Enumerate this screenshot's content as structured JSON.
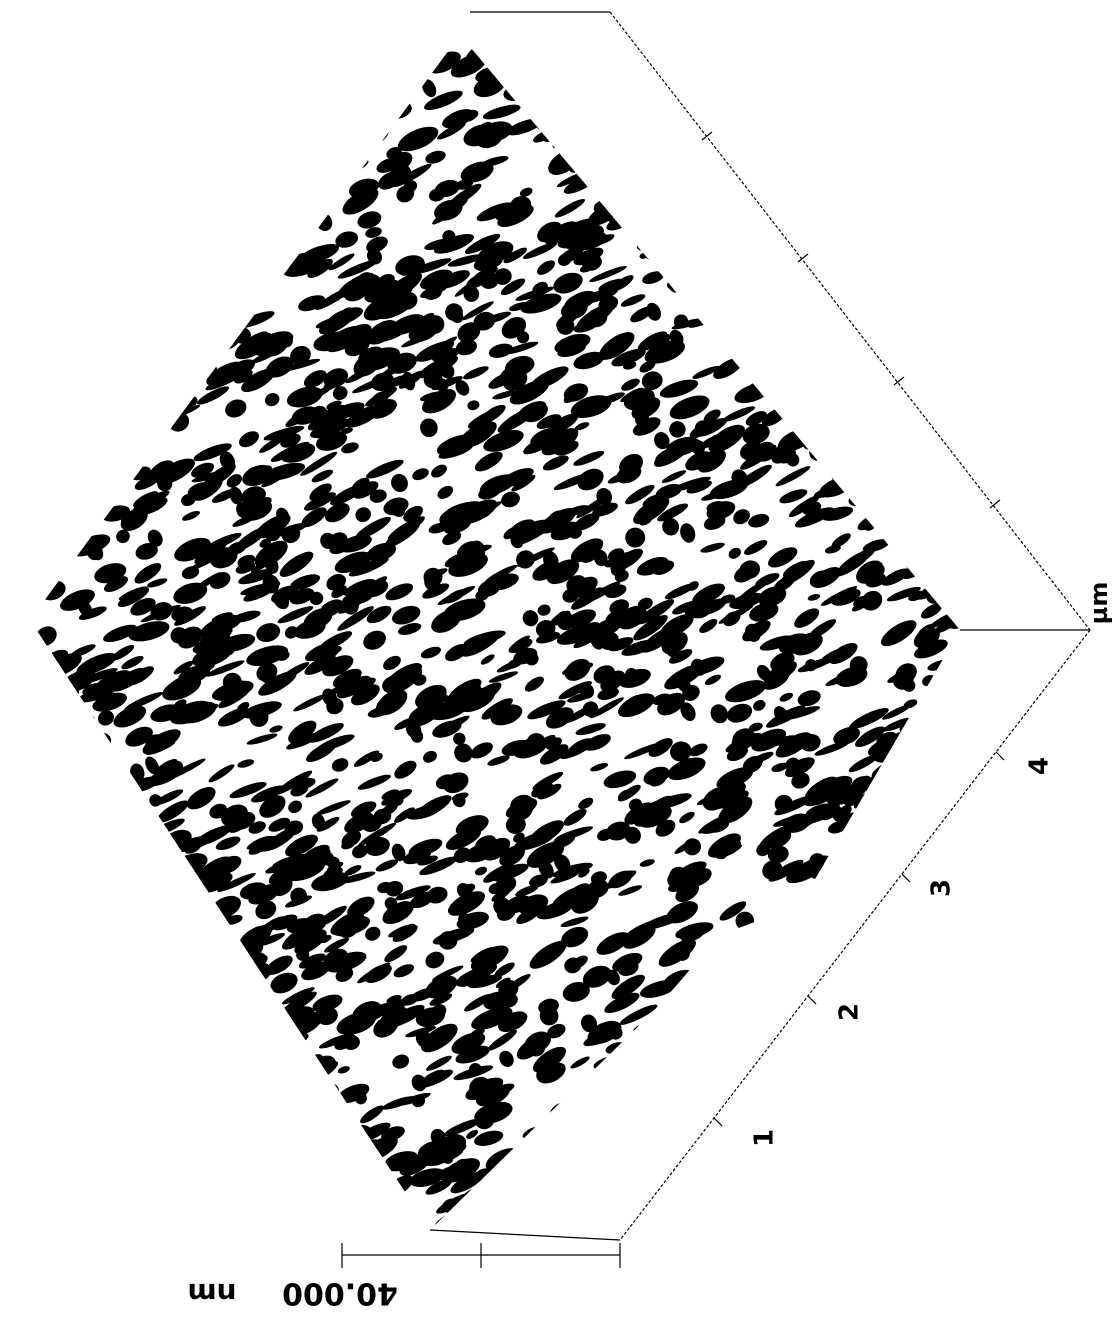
{
  "z_scale": {
    "label": "40.000",
    "unit": "nm"
  },
  "x_axis": {
    "ticks": [
      "1",
      "2",
      "3",
      "4"
    ],
    "unit": "µm"
  }
}
